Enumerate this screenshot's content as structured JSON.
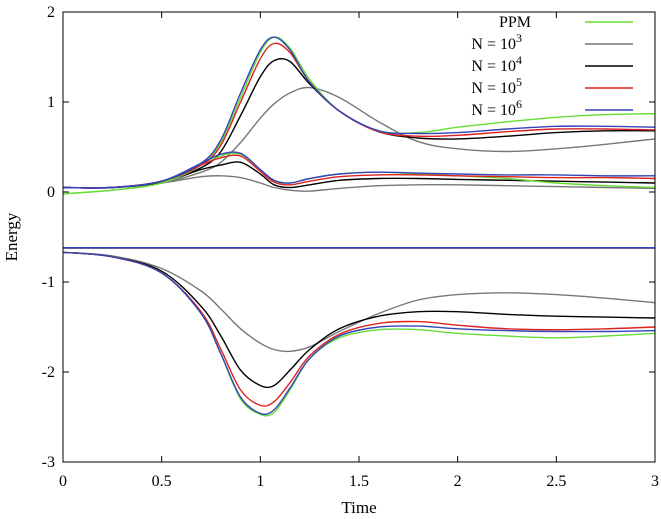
{
  "chart_data": {
    "type": "line",
    "xlabel": "Time",
    "ylabel": "Energy",
    "xlim": [
      0,
      3
    ],
    "ylim": [
      -3,
      2
    ],
    "xticks": [
      "0",
      "0.5",
      "1",
      "1.5",
      "2",
      "2.5",
      "3"
    ],
    "yticks": [
      "-3",
      "-2",
      "-1",
      "0",
      "1",
      "2"
    ],
    "grid": false,
    "legend_placement": "top-right",
    "x": [
      0,
      0.25,
      0.5,
      0.7,
      0.8,
      0.9,
      1.0,
      1.07,
      1.15,
      1.25,
      1.4,
      1.6,
      1.8,
      2.0,
      2.25,
      2.5,
      2.75,
      3
    ],
    "series": [
      {
        "name": "PPM",
        "legend_base": "PPM",
        "legend_exp": "",
        "color": "#66dd33",
        "upper": [
          -0.02,
          0.02,
          0.1,
          0.3,
          0.55,
          1.05,
          1.55,
          1.72,
          1.6,
          1.25,
          0.9,
          0.68,
          0.66,
          0.72,
          0.78,
          0.83,
          0.86,
          0.87
        ],
        "middle": [
          -0.02,
          0.02,
          0.1,
          0.3,
          0.4,
          0.42,
          0.25,
          0.12,
          0.1,
          0.15,
          0.2,
          0.22,
          0.2,
          0.18,
          0.15,
          0.1,
          0.07,
          0.05
        ],
        "lower": [
          -0.67,
          -0.72,
          -0.9,
          -1.35,
          -1.8,
          -2.3,
          -2.47,
          -2.45,
          -2.2,
          -1.85,
          -1.62,
          -1.53,
          -1.53,
          -1.57,
          -1.6,
          -1.62,
          -1.6,
          -1.57
        ],
        "total": -0.62
      },
      {
        "name": "N = 10^3",
        "legend_base": "N = 10",
        "legend_exp": "3",
        "color": "#777777",
        "upper": [
          0.05,
          0.05,
          0.1,
          0.22,
          0.33,
          0.55,
          0.82,
          0.98,
          1.1,
          1.16,
          1.05,
          0.78,
          0.56,
          0.48,
          0.45,
          0.48,
          0.53,
          0.59
        ],
        "middle": [
          0.05,
          0.05,
          0.1,
          0.17,
          0.18,
          0.16,
          0.1,
          0.05,
          0.02,
          0.01,
          0.04,
          0.07,
          0.08,
          0.08,
          0.07,
          0.06,
          0.05,
          0.04
        ],
        "lower": [
          -0.67,
          -0.71,
          -0.85,
          -1.1,
          -1.3,
          -1.52,
          -1.68,
          -1.75,
          -1.77,
          -1.72,
          -1.55,
          -1.35,
          -1.2,
          -1.14,
          -1.12,
          -1.14,
          -1.18,
          -1.23
        ],
        "total": -0.62
      },
      {
        "name": "N = 10^4",
        "legend_base": "N = 10",
        "legend_exp": "4",
        "color": "#000000",
        "upper": [
          0.05,
          0.05,
          0.11,
          0.27,
          0.45,
          0.85,
          1.28,
          1.46,
          1.45,
          1.2,
          0.9,
          0.67,
          0.6,
          0.59,
          0.62,
          0.66,
          0.68,
          0.68
        ],
        "middle": [
          0.05,
          0.05,
          0.11,
          0.25,
          0.3,
          0.33,
          0.2,
          0.08,
          0.05,
          0.08,
          0.13,
          0.15,
          0.15,
          0.14,
          0.13,
          0.12,
          0.11,
          0.1
        ],
        "lower": [
          -0.67,
          -0.72,
          -0.88,
          -1.27,
          -1.6,
          -1.98,
          -2.15,
          -2.15,
          -1.98,
          -1.75,
          -1.52,
          -1.38,
          -1.33,
          -1.33,
          -1.36,
          -1.38,
          -1.39,
          -1.4
        ],
        "total": -0.62
      },
      {
        "name": "N = 10^5",
        "legend_base": "N = 10",
        "legend_exp": "5",
        "color": "#dd2222",
        "upper": [
          0.05,
          0.05,
          0.12,
          0.3,
          0.52,
          1.0,
          1.48,
          1.65,
          1.55,
          1.22,
          0.9,
          0.67,
          0.62,
          0.63,
          0.67,
          0.7,
          0.7,
          0.69
        ],
        "middle": [
          0.05,
          0.05,
          0.12,
          0.3,
          0.38,
          0.4,
          0.23,
          0.11,
          0.08,
          0.12,
          0.17,
          0.19,
          0.19,
          0.18,
          0.17,
          0.16,
          0.16,
          0.15
        ],
        "lower": [
          -0.67,
          -0.72,
          -0.9,
          -1.33,
          -1.75,
          -2.2,
          -2.37,
          -2.33,
          -2.12,
          -1.82,
          -1.58,
          -1.46,
          -1.44,
          -1.48,
          -1.52,
          -1.53,
          -1.52,
          -1.5
        ],
        "total": -0.62
      },
      {
        "name": "N = 10^6",
        "legend_base": "N = 10",
        "legend_exp": "6",
        "color": "#3344bb",
        "upper": [
          0.05,
          0.05,
          0.12,
          0.32,
          0.58,
          1.1,
          1.58,
          1.72,
          1.58,
          1.22,
          0.9,
          0.68,
          0.65,
          0.66,
          0.7,
          0.73,
          0.73,
          0.72
        ],
        "middle": [
          0.05,
          0.05,
          0.12,
          0.32,
          0.42,
          0.43,
          0.25,
          0.13,
          0.1,
          0.15,
          0.2,
          0.22,
          0.21,
          0.2,
          0.19,
          0.19,
          0.18,
          0.18
        ],
        "lower": [
          -0.67,
          -0.72,
          -0.9,
          -1.35,
          -1.8,
          -2.28,
          -2.46,
          -2.42,
          -2.18,
          -1.85,
          -1.6,
          -1.5,
          -1.49,
          -1.52,
          -1.54,
          -1.55,
          -1.55,
          -1.54
        ],
        "total": -0.62
      }
    ]
  }
}
